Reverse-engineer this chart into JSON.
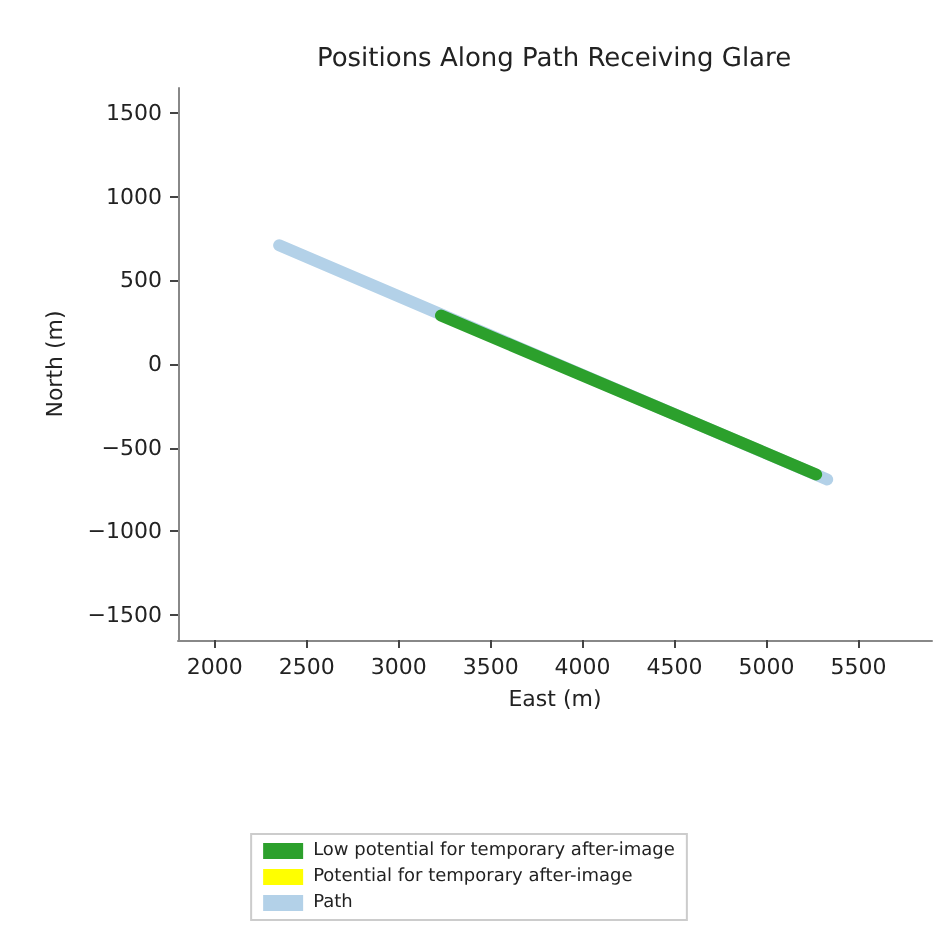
{
  "chart_data": {
    "type": "line",
    "title": "Positions Along Path Receiving Glare",
    "xlabel": "East (m)",
    "ylabel": "North (m)",
    "xlim": [
      1800,
      5900
    ],
    "ylim": [
      -1650,
      1650
    ],
    "xticks": [
      2000,
      2500,
      3000,
      3500,
      4000,
      4500,
      5000,
      5500
    ],
    "yticks": [
      -1500,
      -1000,
      -500,
      0,
      500,
      1000,
      1500
    ],
    "grid": false,
    "legend": "bottom",
    "marker": "none",
    "line_style": "solid",
    "series": [
      {
        "name": "Path",
        "color": "#b3d1e8",
        "x": [
          2350,
          5330
        ],
        "values": [
          710,
          -690
        ]
      },
      {
        "name": "Low potential for temporary after-image",
        "color": "#2ca02c",
        "x": [
          3230,
          5270
        ],
        "values": [
          290,
          -660
        ]
      },
      {
        "name": "Potential for temporary after-image",
        "color": "#ffff00"
      }
    ]
  }
}
